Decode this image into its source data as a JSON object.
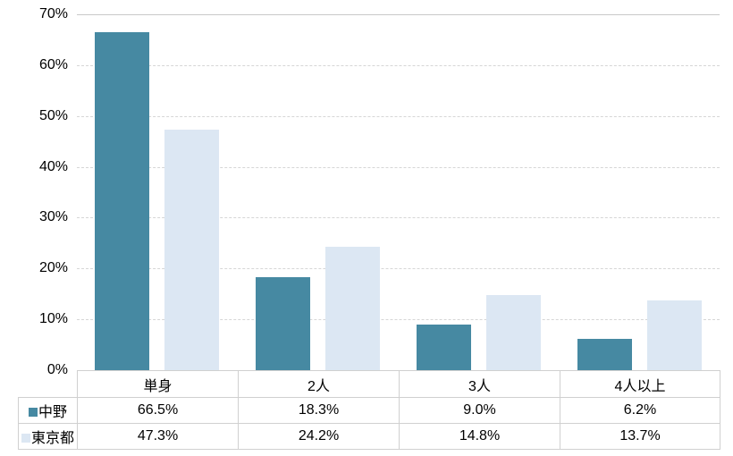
{
  "chart_data": {
    "type": "bar",
    "title": "",
    "categories": [
      "単身",
      "2人",
      "3人",
      "4人以上"
    ],
    "series": [
      {
        "name": "中野",
        "color": "#4689a2",
        "values": [
          66.5,
          18.3,
          9.0,
          6.2
        ],
        "labels": [
          "66.5%",
          "18.3%",
          "9.0%",
          "6.2%"
        ]
      },
      {
        "name": "東京都",
        "color": "#dce7f3",
        "values": [
          47.3,
          24.2,
          14.8,
          13.7
        ],
        "labels": [
          "47.3%",
          "24.2%",
          "14.8%",
          "13.7%"
        ]
      }
    ],
    "xlabel": "",
    "ylabel": "",
    "ylim": [
      0,
      70
    ],
    "yticks": [
      {
        "value": 0,
        "label": "0%"
      },
      {
        "value": 10,
        "label": "10%"
      },
      {
        "value": 20,
        "label": "20%"
      },
      {
        "value": 30,
        "label": "30%"
      },
      {
        "value": 40,
        "label": "40%"
      },
      {
        "value": 50,
        "label": "50%"
      },
      {
        "value": 60,
        "label": "60%"
      },
      {
        "value": 70,
        "label": "70%"
      }
    ],
    "grid": "horizontal",
    "gridline_style": "dashed",
    "legend_position": "data-table-left",
    "colors": {
      "gridline": "#d6d6d6",
      "top_gridline": "#c9c9c9",
      "table_border": "#d0d0d0",
      "text": "#000000",
      "background": "#ffffff"
    }
  }
}
